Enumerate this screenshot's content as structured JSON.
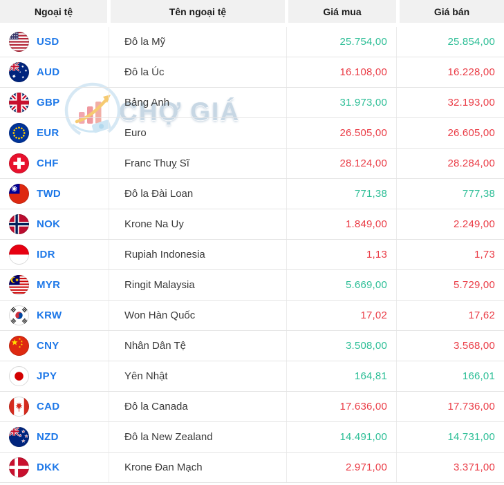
{
  "table": {
    "headers": [
      "Ngoại tệ",
      "Tên ngoại tệ",
      "Giá mua",
      "Giá bán"
    ],
    "rows": [
      {
        "code": "USD",
        "flag_icon": "flag-usd-icon",
        "name": "Đô la Mỹ",
        "buy": "25.754,00",
        "buy_trend": "up",
        "sell": "25.854,00",
        "sell_trend": "up"
      },
      {
        "code": "AUD",
        "flag_icon": "flag-aud-icon",
        "name": "Đô la Úc",
        "buy": "16.108,00",
        "buy_trend": "down",
        "sell": "16.228,00",
        "sell_trend": "down"
      },
      {
        "code": "GBP",
        "flag_icon": "flag-gbp-icon",
        "name": "Bảng Anh",
        "buy": "31.973,00",
        "buy_trend": "up",
        "sell": "32.193,00",
        "sell_trend": "down"
      },
      {
        "code": "EUR",
        "flag_icon": "flag-eur-icon",
        "name": "Euro",
        "buy": "26.505,00",
        "buy_trend": "down",
        "sell": "26.605,00",
        "sell_trend": "down"
      },
      {
        "code": "CHF",
        "flag_icon": "flag-chf-icon",
        "name": "Franc Thuỵ Sĩ",
        "buy": "28.124,00",
        "buy_trend": "down",
        "sell": "28.284,00",
        "sell_trend": "down"
      },
      {
        "code": "TWD",
        "flag_icon": "flag-twd-icon",
        "name": "Đô la Đài Loan",
        "buy": "771,38",
        "buy_trend": "up",
        "sell": "777,38",
        "sell_trend": "up"
      },
      {
        "code": "NOK",
        "flag_icon": "flag-nok-icon",
        "name": "Krone Na Uy",
        "buy": "1.849,00",
        "buy_trend": "down",
        "sell": "2.249,00",
        "sell_trend": "down"
      },
      {
        "code": "IDR",
        "flag_icon": "flag-idr-icon",
        "name": "Rupiah Indonesia",
        "buy": "1,13",
        "buy_trend": "down",
        "sell": "1,73",
        "sell_trend": "down"
      },
      {
        "code": "MYR",
        "flag_icon": "flag-myr-icon",
        "name": "Ringit Malaysia",
        "buy": "5.669,00",
        "buy_trend": "up",
        "sell": "5.729,00",
        "sell_trend": "down"
      },
      {
        "code": "KRW",
        "flag_icon": "flag-krw-icon",
        "name": "Won Hàn Quốc",
        "buy": "17,02",
        "buy_trend": "down",
        "sell": "17,62",
        "sell_trend": "down"
      },
      {
        "code": "CNY",
        "flag_icon": "flag-cny-icon",
        "name": "Nhân Dân Tệ",
        "buy": "3.508,00",
        "buy_trend": "up",
        "sell": "3.568,00",
        "sell_trend": "down"
      },
      {
        "code": "JPY",
        "flag_icon": "flag-jpy-icon",
        "name": "Yên Nhật",
        "buy": "164,81",
        "buy_trend": "up",
        "sell": "166,01",
        "sell_trend": "up"
      },
      {
        "code": "CAD",
        "flag_icon": "flag-cad-icon",
        "name": "Đô la Canada",
        "buy": "17.636,00",
        "buy_trend": "down",
        "sell": "17.736,00",
        "sell_trend": "down"
      },
      {
        "code": "NZD",
        "flag_icon": "flag-nzd-icon",
        "name": "Đô la New Zealand",
        "buy": "14.491,00",
        "buy_trend": "up",
        "sell": "14.731,00",
        "sell_trend": "up"
      },
      {
        "code": "DKK",
        "flag_icon": "flag-dkk-icon",
        "name": "Krone Đan Mạch",
        "buy": "2.971,00",
        "buy_trend": "down",
        "sell": "3.371,00",
        "sell_trend": "down"
      }
    ]
  },
  "watermark": {
    "text": "CHỢ GIÁ",
    "logo_icon": "cho-gia-logo-icon"
  },
  "colors": {
    "price_up": "#2cbe96",
    "price_down": "#ea3b45",
    "currency_link": "#1e78e8",
    "header_bg": "#f1f1f1",
    "row_border": "#e4e4e4"
  }
}
